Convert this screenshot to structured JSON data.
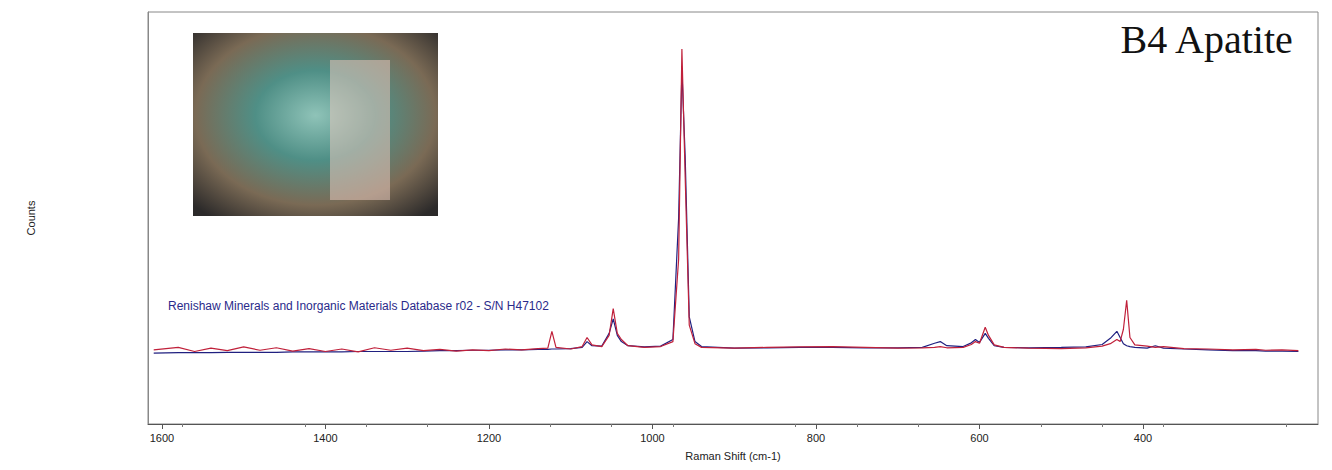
{
  "chart_data": {
    "type": "line",
    "title": "B4 Apatite",
    "annotations": [
      "Renishaw Minerals and Inorganic Materials Database r02 - S/N H47102"
    ],
    "x_label": "Raman Shift (cm-1)",
    "y_label": "Counts",
    "xlim": [
      1617,
      186
    ],
    "xticks": [
      1600,
      1400,
      1200,
      1000,
      800,
      600,
      400
    ],
    "ylim": [
      0,
      100
    ],
    "tick_labels": "x",
    "grid": false,
    "x": [
      1610,
      1580,
      1560,
      1540,
      1520,
      1500,
      1480,
      1460,
      1440,
      1420,
      1400,
      1380,
      1360,
      1340,
      1320,
      1300,
      1280,
      1260,
      1240,
      1220,
      1200,
      1180,
      1160,
      1140,
      1128,
      1123,
      1118,
      1100,
      1086,
      1080,
      1074,
      1062,
      1053,
      1048,
      1043,
      1038,
      1030,
      1010,
      990,
      975,
      968,
      964,
      960,
      955,
      948,
      940,
      900,
      860,
      820,
      780,
      740,
      700,
      670,
      655,
      648,
      640,
      620,
      610,
      605,
      600,
      593,
      589,
      582,
      570,
      540,
      500,
      470,
      450,
      440,
      432,
      428,
      424,
      420,
      416,
      410,
      395,
      385,
      375,
      350,
      320,
      290,
      262,
      250,
      230,
      210
    ],
    "series": [
      {
        "color": "#202080",
        "values": [
          17.2,
          17.3,
          17.3,
          17.3,
          17.4,
          17.4,
          17.4,
          17.4,
          17.5,
          17.5,
          17.5,
          17.5,
          17.6,
          17.6,
          17.6,
          17.6,
          17.7,
          17.8,
          17.8,
          17.9,
          17.9,
          18.0,
          18.0,
          18.1,
          18.1,
          18.2,
          18.2,
          18.3,
          18.6,
          20.0,
          19.0,
          18.9,
          22.0,
          25.5,
          21.5,
          20.0,
          19.0,
          18.7,
          18.9,
          20.5,
          50.0,
          86.0,
          65.0,
          26.0,
          20.0,
          18.8,
          18.4,
          18.5,
          18.6,
          18.6,
          18.5,
          18.5,
          18.6,
          19.6,
          20.0,
          19.0,
          18.8,
          19.7,
          20.5,
          19.8,
          22.0,
          20.8,
          19.0,
          18.6,
          18.5,
          18.6,
          18.7,
          19.3,
          20.8,
          22.5,
          21.0,
          19.5,
          19.0,
          18.8,
          18.6,
          18.4,
          19.0,
          18.4,
          18.2,
          18.0,
          17.8,
          17.8,
          17.7,
          17.7,
          17.6
        ]
      },
      {
        "color": "#c0203a",
        "values": [
          18.0,
          18.6,
          17.6,
          18.4,
          17.8,
          18.7,
          17.9,
          18.5,
          17.7,
          18.3,
          17.6,
          18.2,
          17.5,
          18.5,
          17.9,
          18.4,
          17.8,
          18.1,
          17.7,
          18.0,
          17.8,
          18.2,
          18.0,
          18.3,
          18.4,
          22.5,
          18.6,
          18.2,
          18.8,
          21.0,
          19.2,
          18.8,
          21.5,
          28.0,
          22.0,
          20.5,
          19.0,
          18.6,
          18.8,
          20.0,
          40.0,
          91.0,
          60.0,
          24.0,
          19.5,
          18.6,
          18.4,
          18.6,
          18.7,
          18.8,
          18.6,
          18.4,
          18.5,
          18.6,
          18.8,
          18.5,
          18.6,
          19.3,
          20.0,
          19.6,
          23.5,
          21.5,
          19.2,
          18.6,
          18.4,
          18.3,
          18.5,
          18.9,
          19.5,
          20.5,
          20.0,
          23.0,
          30.0,
          21.0,
          19.2,
          18.9,
          18.6,
          18.8,
          18.3,
          18.2,
          18.0,
          18.1,
          17.9,
          18.0,
          17.8
        ]
      }
    ]
  }
}
